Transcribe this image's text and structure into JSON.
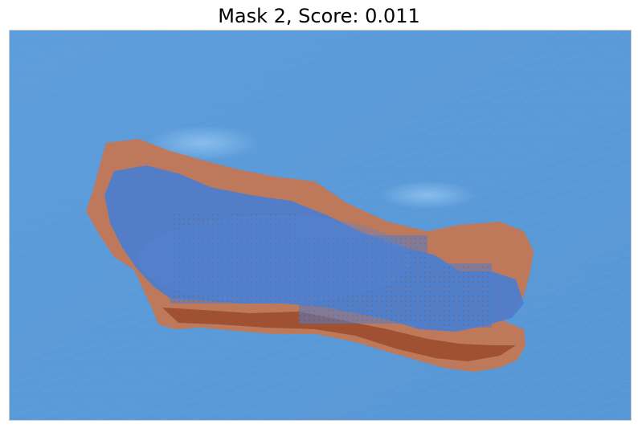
{
  "title": "Mask 2, Score: 0.011",
  "colors": {
    "background_blue": "#5b9ad8",
    "mask_overlay_blue": "#4a7fd0",
    "mask_edge_orange": "#c9764e",
    "mask_edge_dark": "#9a4a2c",
    "highlight_light_blue": "#8cc4f2"
  }
}
